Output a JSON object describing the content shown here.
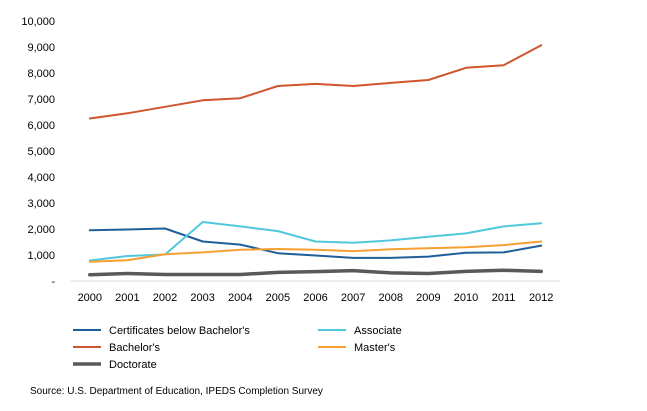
{
  "chart_data": {
    "type": "line",
    "title": "",
    "xlabel": "",
    "ylabel": "",
    "x": [
      "2000",
      "2001",
      "2002",
      "2003",
      "2004",
      "2005",
      "2006",
      "2007",
      "2008",
      "2009",
      "2010",
      "2011",
      "2012"
    ],
    "ylim": [
      0,
      10000
    ],
    "y_tick_values": [
      0,
      1000,
      2000,
      3000,
      4000,
      5000,
      6000,
      7000,
      8000,
      9000,
      10000
    ],
    "y_tick_labels": [
      "-",
      "1,000",
      "2,000",
      "3,000",
      "4,000",
      "5,000",
      "6,000",
      "7,000",
      "8,000",
      "9,000",
      "10,000"
    ],
    "grid": false,
    "legend_position": "bottom",
    "series": [
      {
        "name": "Certificates below Bachelor's",
        "color": "#1f5f99",
        "values": [
          1950,
          1980,
          2020,
          1520,
          1400,
          1070,
          980,
          890,
          890,
          940,
          1090,
          1100,
          1360
        ]
      },
      {
        "name": "Associate",
        "color": "#4fc8dc",
        "values": [
          790,
          960,
          1020,
          2270,
          2100,
          1920,
          1520,
          1470,
          1560,
          1700,
          1830,
          2100,
          2220
        ]
      },
      {
        "name": "Bachelor's",
        "color": "#d0542c",
        "values": [
          6250,
          6450,
          6700,
          6950,
          7030,
          7500,
          7580,
          7500,
          7620,
          7730,
          8200,
          8300,
          9070
        ]
      },
      {
        "name": "Master's",
        "color": "#f5a031",
        "values": [
          740,
          800,
          1030,
          1100,
          1200,
          1230,
          1200,
          1150,
          1220,
          1260,
          1300,
          1380,
          1520
        ]
      },
      {
        "name": "Doctorate",
        "color": "#595959",
        "values": [
          240,
          290,
          250,
          250,
          250,
          330,
          360,
          400,
          310,
          290,
          370,
          410,
          370
        ]
      }
    ],
    "source": "Source: U.S. Department of Education, IPEDS Completion Survey"
  }
}
